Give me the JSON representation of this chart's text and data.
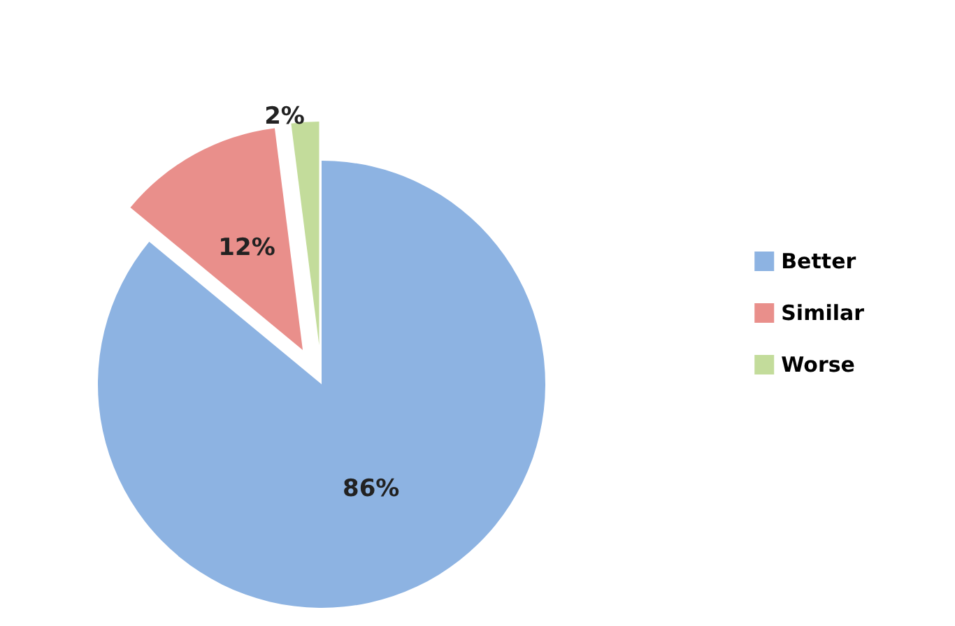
{
  "chart_data": {
    "type": "pie",
    "categories": [
      "Better",
      "Similar",
      "Worse"
    ],
    "values": [
      86,
      12,
      2
    ],
    "colors": [
      "#8db3e2",
      "#e98f8b",
      "#c3dc9b"
    ],
    "value_labels": [
      "86%",
      "12%",
      "2%"
    ],
    "legend": "right"
  }
}
